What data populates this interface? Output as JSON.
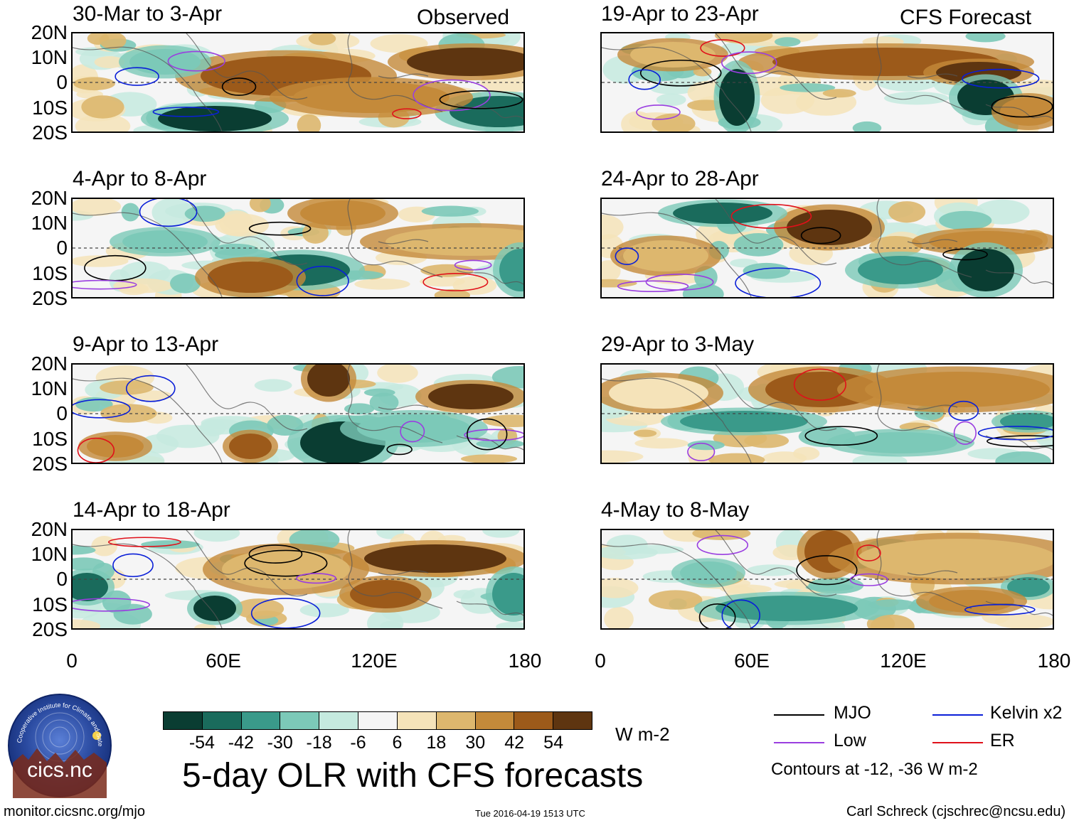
{
  "columns": {
    "observed": "Observed",
    "forecast": "CFS Forecast"
  },
  "panels_left": [
    {
      "title": "30-Mar to 3-Apr"
    },
    {
      "title": "4-Apr to 8-Apr"
    },
    {
      "title": "9-Apr to 13-Apr"
    },
    {
      "title": "14-Apr to 18-Apr"
    }
  ],
  "panels_right": [
    {
      "title": "19-Apr to 23-Apr"
    },
    {
      "title": "24-Apr to 28-Apr"
    },
    {
      "title": "29-Apr to 3-May"
    },
    {
      "title": "4-May to 8-May"
    }
  ],
  "axes": {
    "lat_labels": [
      "20N",
      "10N",
      "0",
      "10S",
      "20S"
    ],
    "lon_labels": [
      "0",
      "60E",
      "120E",
      "180"
    ]
  },
  "colorbar": {
    "ticks": [
      "-54",
      "-42",
      "-30",
      "-18",
      "-6",
      "6",
      "18",
      "30",
      "42",
      "54"
    ],
    "colors": [
      "#0a3d32",
      "#1a6b5c",
      "#3a9a8a",
      "#7cc9b8",
      "#c5eadf",
      "#f5f5f5",
      "#f5e3b9",
      "#ddb76e",
      "#c48a3a",
      "#9c5a1a",
      "#5e3510"
    ],
    "units": "W m-2"
  },
  "title": "5-day OLR with CFS forecasts",
  "legend": {
    "items": [
      {
        "label": "MJO",
        "color": "#000000"
      },
      {
        "label": "Kelvin x2",
        "color": "#0a1fd8"
      },
      {
        "label": "Low",
        "color": "#9a3ee0"
      },
      {
        "label": "ER",
        "color": "#e0101a"
      }
    ],
    "note": "Contours at -12, -36 W m-2"
  },
  "logo": {
    "text": "cics.nc",
    "ring_text": "Cooperative Institute for Climate and Satellites"
  },
  "footer": {
    "url": "monitor.cicsnc.org/mjo",
    "timestamp": "Tue 2016-04-19 1513 UTC",
    "credit": "Carl Schreck (cjschrec@ncsu.edu)"
  }
}
